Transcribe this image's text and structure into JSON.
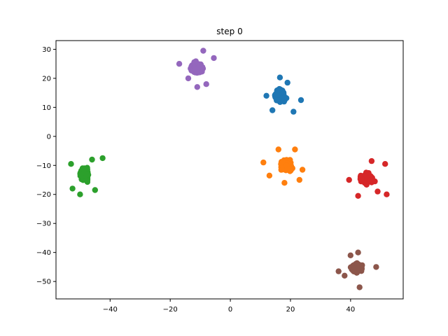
{
  "chart_data": {
    "type": "scatter",
    "title": "step 0",
    "xlabel": "",
    "ylabel": "",
    "xlim": [
      -58,
      57.5
    ],
    "ylim": [
      -56,
      33
    ],
    "xticks": [
      -40,
      -20,
      0,
      20,
      40
    ],
    "yticks": [
      30,
      20,
      10,
      0,
      -10,
      -20,
      -30,
      -40,
      -50
    ],
    "xtick_labels": [
      "−40",
      "−20",
      "0",
      "20",
      "40"
    ],
    "ytick_labels": [
      "30",
      "20",
      "10",
      "0",
      "−10",
      "−20",
      "−30",
      "−40",
      "−50"
    ],
    "grid": false,
    "series": [
      {
        "color": "#1f77b4",
        "center": [
          16.5,
          14
        ],
        "spread": [
          2.2,
          2.4
        ],
        "count": 180,
        "outliers": [
          [
            21,
            8.5
          ],
          [
            23.5,
            12.5
          ],
          [
            12,
            14
          ],
          [
            16.5,
            20.3
          ],
          [
            14,
            9
          ],
          [
            19,
            18.5
          ]
        ]
      },
      {
        "color": "#ff7f0e",
        "center": [
          18.5,
          -10
        ],
        "spread": [
          2.4,
          2.2
        ],
        "count": 180,
        "outliers": [
          [
            11,
            -9
          ],
          [
            13,
            -13.5
          ],
          [
            23,
            -15
          ],
          [
            24,
            -11.5
          ],
          [
            16,
            -4.5
          ],
          [
            21.5,
            -4.5
          ],
          [
            18,
            -16
          ]
        ]
      },
      {
        "color": "#2ca02c",
        "center": [
          -48.5,
          -13
        ],
        "spread": [
          1.8,
          2.4
        ],
        "count": 180,
        "outliers": [
          [
            -42.5,
            -7.5
          ],
          [
            -52.5,
            -18
          ],
          [
            -50,
            -20
          ],
          [
            -45,
            -18.5
          ],
          [
            -53,
            -9.5
          ],
          [
            -46,
            -8
          ]
        ]
      },
      {
        "color": "#d62728",
        "center": [
          45.5,
          -14.5
        ],
        "spread": [
          2.3,
          2
        ],
        "count": 180,
        "outliers": [
          [
            52,
            -20
          ],
          [
            51.5,
            -9.5
          ],
          [
            42.5,
            -20.5
          ],
          [
            39.5,
            -15
          ],
          [
            47,
            -8.5
          ],
          [
            49,
            -19
          ]
        ]
      },
      {
        "color": "#9467bd",
        "center": [
          -11,
          23.5
        ],
        "spread": [
          2.4,
          2.2
        ],
        "count": 180,
        "outliers": [
          [
            -17,
            25
          ],
          [
            -14,
            20
          ],
          [
            -9,
            29.5
          ],
          [
            -8,
            18
          ],
          [
            -5.5,
            27
          ],
          [
            -11,
            17
          ]
        ]
      },
      {
        "color": "#8c564b",
        "center": [
          42,
          -45.5
        ],
        "spread": [
          2.1,
          2
        ],
        "count": 180,
        "outliers": [
          [
            36,
            -46.5
          ],
          [
            40,
            -41
          ],
          [
            42.5,
            -40
          ],
          [
            48.5,
            -45
          ],
          [
            43,
            -52
          ],
          [
            38,
            -48
          ]
        ]
      }
    ]
  }
}
